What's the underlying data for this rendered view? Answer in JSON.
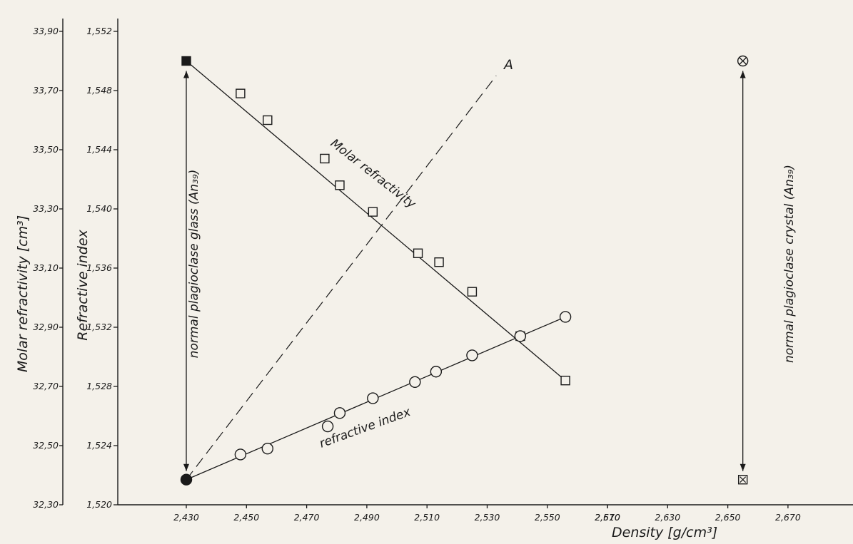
{
  "chart_data": {
    "type": "scatter",
    "title": "",
    "xlabel": "Density [g/cm³]",
    "ylabel": "Refractive index",
    "ylabel_secondary": "Molar refractivity [cm³]",
    "x_ticks": [
      "2,430",
      "2,450",
      "2,470",
      "2,490",
      "2,510",
      "2,530",
      "2,550",
      "2,570",
      "2,610",
      "2,630",
      "2,650",
      "2,670"
    ],
    "y_ticks": [
      "1,520",
      "1,524",
      "1,528",
      "1,532",
      "1,536",
      "1,540",
      "1,544",
      "1,548",
      "1,552"
    ],
    "y2_ticks": [
      "32,30",
      "32,50",
      "32,70",
      "32,90",
      "33,10",
      "33,30",
      "33,50",
      "33,70",
      "33,90"
    ],
    "xlim": [
      "2,430",
      "2,670"
    ],
    "ylim": [
      1.52,
      1.552
    ],
    "y2lim": [
      32.3,
      33.9
    ],
    "series": [
      {
        "name": "Molar refractivity",
        "marker": "square",
        "x": [
          2.43,
          2.448,
          2.457,
          2.476,
          2.481,
          2.492,
          2.507,
          2.514,
          2.525,
          2.541,
          2.556
        ],
        "y": [
          33.8,
          33.69,
          33.6,
          33.47,
          33.38,
          33.29,
          33.15,
          33.12,
          33.02,
          32.87,
          32.72
        ],
        "filled_first": true
      },
      {
        "name": "refractive index",
        "marker": "circle",
        "x": [
          2.43,
          2.448,
          2.457,
          2.477,
          2.481,
          2.492,
          2.506,
          2.513,
          2.525,
          2.541,
          2.556
        ],
        "y": [
          1.5217,
          1.5234,
          1.5238,
          1.5253,
          1.5262,
          1.5272,
          1.5283,
          1.529,
          1.5301,
          1.5314,
          1.5327
        ],
        "filled_first": true
      }
    ],
    "reference_line": {
      "label": "A",
      "style": "dashed",
      "from": {
        "x": 2.43,
        "y": 1.5217
      },
      "to": {
        "x": 2.533,
        "y": 1.549
      }
    },
    "annotations": {
      "glass": "normal plagioclase glass (An₃₉)",
      "crystal": "normal plagioclase crystal (An₃₉)"
    },
    "crystal_points": {
      "x": 2.655,
      "molar_refractivity": 33.8,
      "refractive_index": 1.5217
    }
  }
}
